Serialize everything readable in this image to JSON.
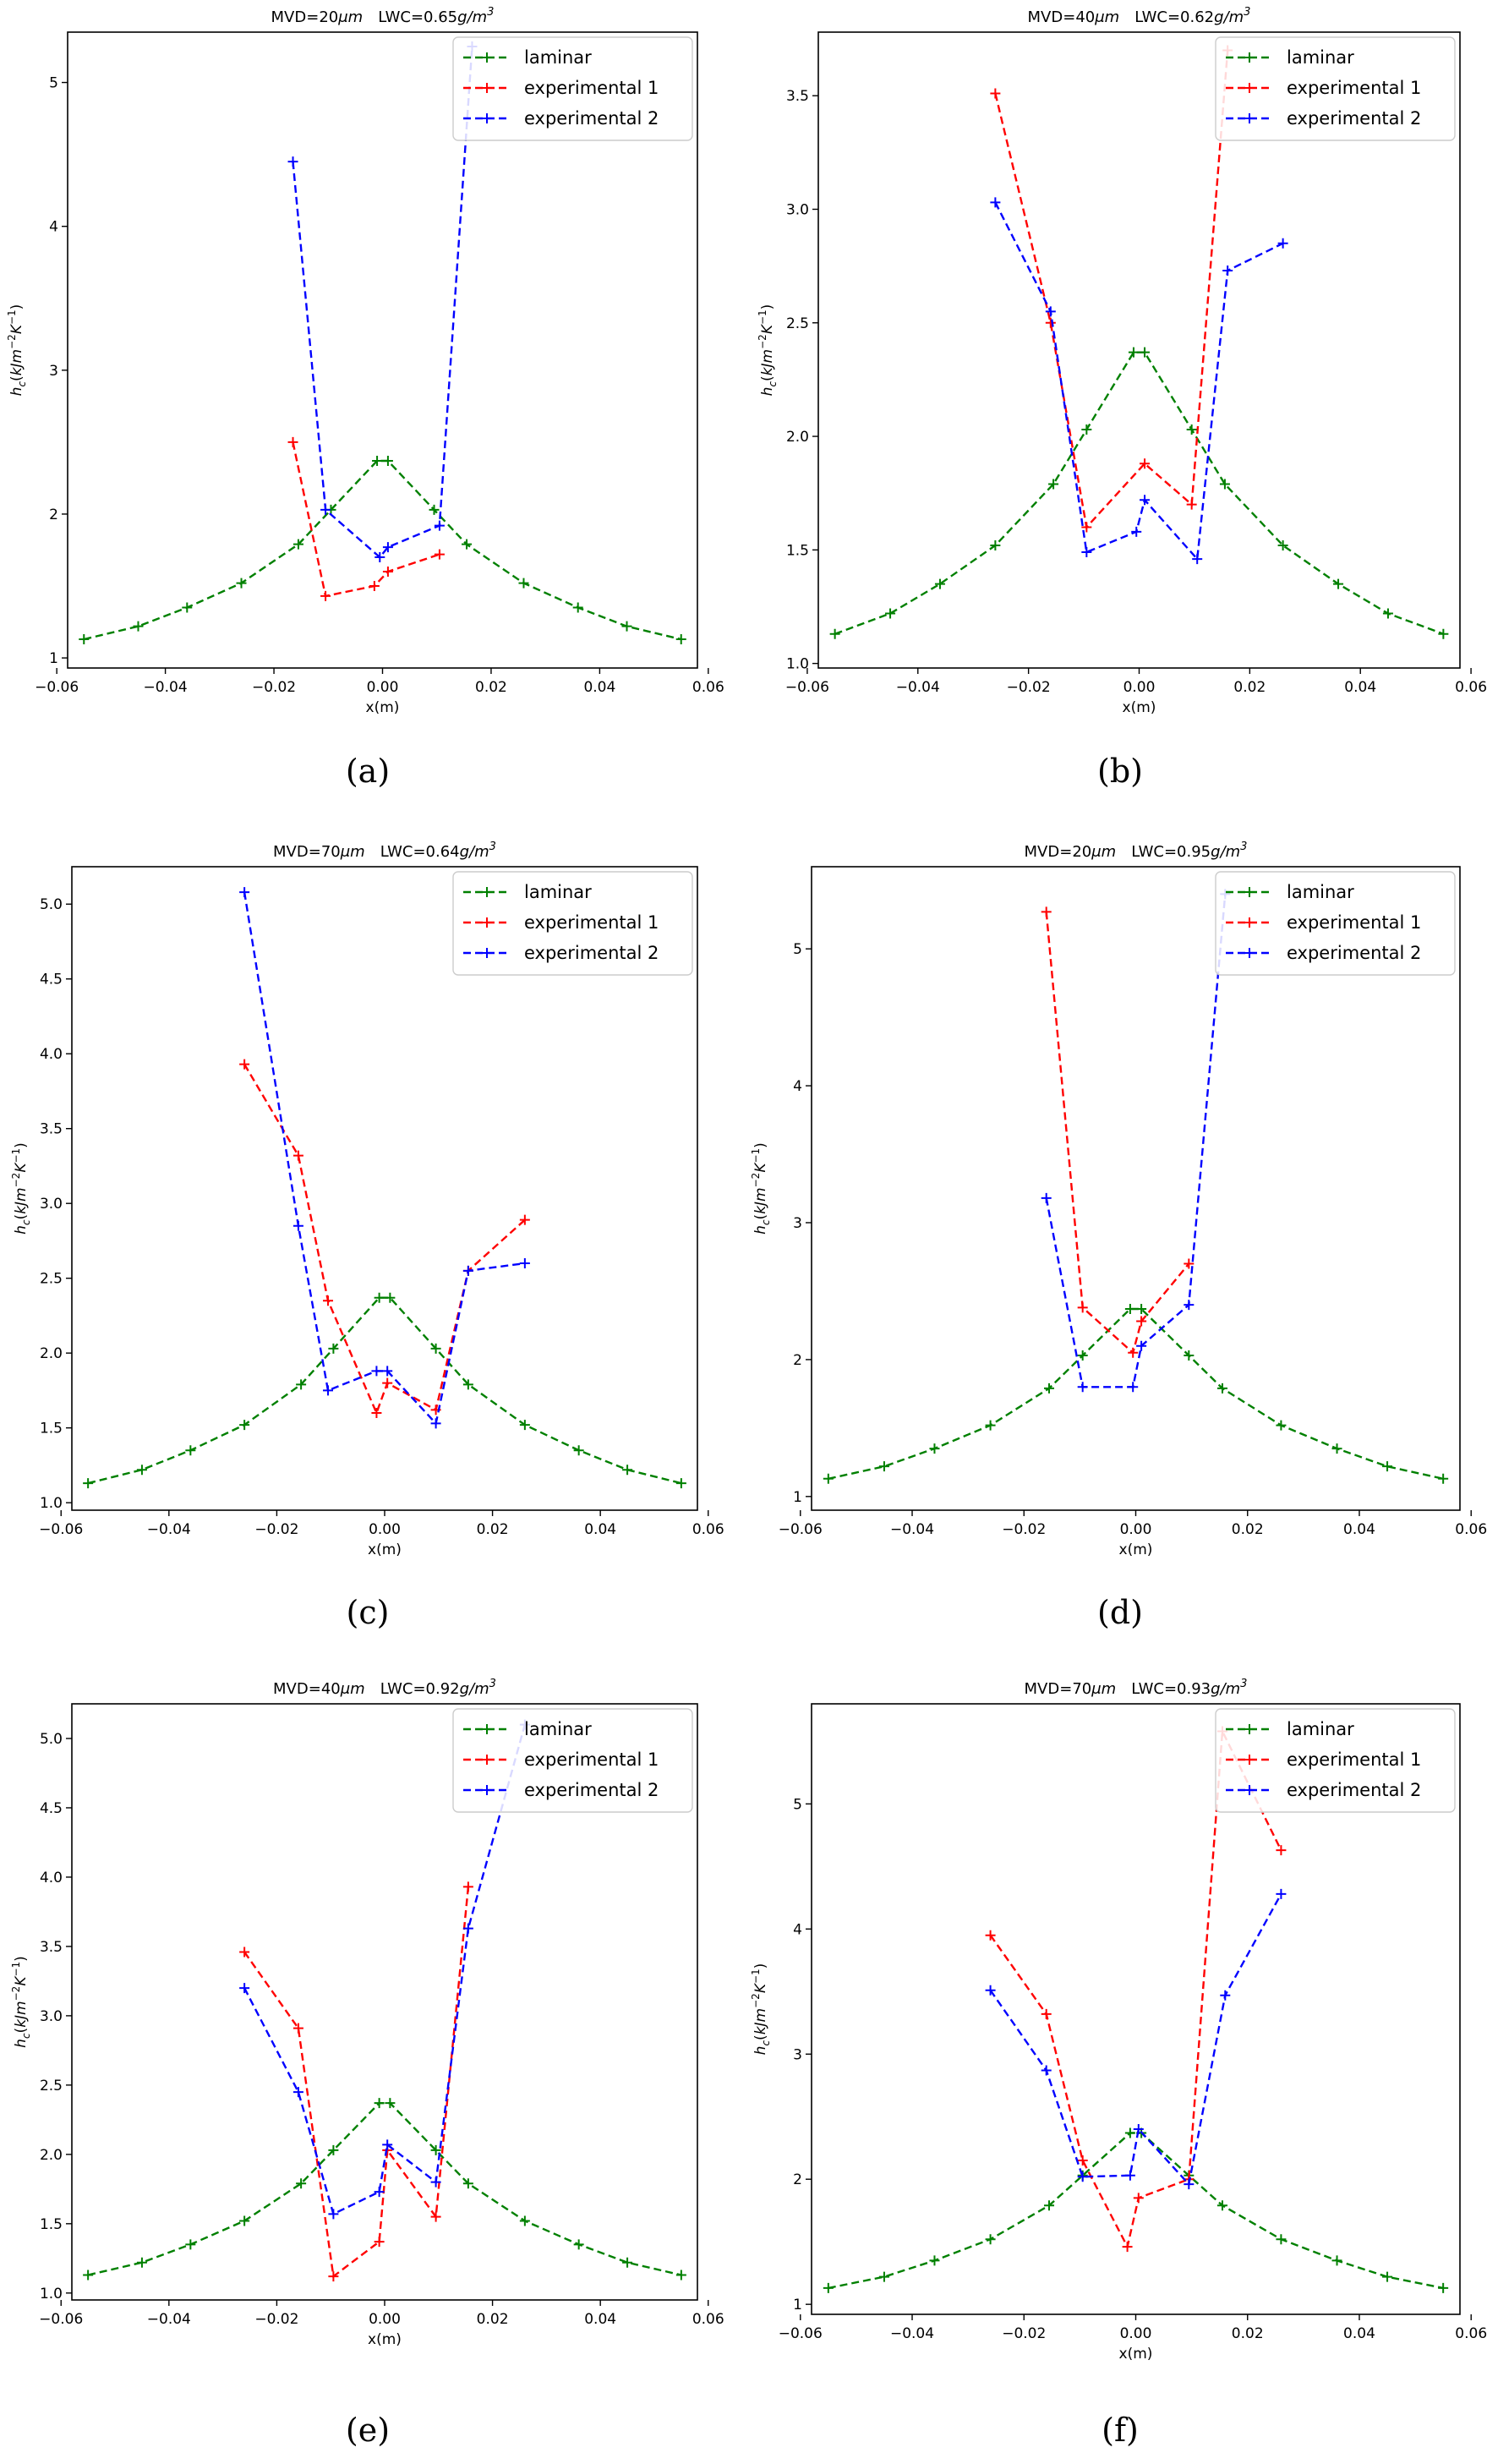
{
  "chart_data": [
    {
      "type": "line",
      "title_main": "MVD=20",
      "title_mvd_unit": "μm",
      "title_lwc": "LWC=0.65",
      "title_lwc_unit": "g/m",
      "title_lwc_exp": "3",
      "caption": "(a)",
      "xlabel": "x(m)",
      "ylabel": "h_c(kJm^-2K^-1)",
      "xlim": [
        -0.058,
        0.058
      ],
      "ylim": [
        0.93,
        5.35
      ],
      "xticks": [
        -0.06,
        -0.04,
        -0.02,
        0.0,
        0.02,
        0.04,
        0.06
      ],
      "xtick_labels": [
        "−0.06",
        "−0.04",
        "−0.02",
        "0.00",
        "0.02",
        "0.04",
        "0.06"
      ],
      "yticks": [
        1,
        2,
        3,
        4,
        5
      ],
      "ytick_labels": [
        "1",
        "2",
        "3",
        "4",
        "5"
      ],
      "legend_position": "top-right",
      "series": [
        {
          "name": "laminar",
          "color": "#008000",
          "x": [
            -0.055,
            -0.045,
            -0.036,
            -0.026,
            -0.0155,
            -0.0095,
            -0.001,
            0.001,
            0.0095,
            0.0155,
            0.026,
            0.036,
            0.045,
            0.055
          ],
          "y": [
            1.13,
            1.22,
            1.35,
            1.52,
            1.79,
            2.03,
            2.37,
            2.37,
            2.03,
            1.79,
            1.52,
            1.35,
            1.22,
            1.13
          ]
        },
        {
          "name": "experimental 1",
          "color": "#ff0000",
          "x": [
            -0.0165,
            -0.0105,
            -0.0015,
            0.001,
            0.0105
          ],
          "y": [
            2.5,
            1.43,
            1.5,
            1.6,
            1.72
          ]
        },
        {
          "name": "experimental 2",
          "color": "#0000ff",
          "x": [
            -0.0165,
            -0.0105,
            -0.0005,
            0.001,
            0.0105,
            0.0165
          ],
          "y": [
            4.45,
            2.03,
            1.7,
            1.77,
            1.92,
            5.25
          ]
        }
      ]
    },
    {
      "type": "line",
      "title_main": "MVD=40",
      "title_mvd_unit": "μm",
      "title_lwc": "LWC=0.62",
      "title_lwc_unit": "g/m",
      "title_lwc_exp": "3",
      "caption": "(b)",
      "xlabel": "x(m)",
      "ylabel": "h_c(kJm^-2K^-1)",
      "xlim": [
        -0.058,
        0.058
      ],
      "ylim": [
        0.98,
        3.78
      ],
      "xticks": [
        -0.06,
        -0.04,
        -0.02,
        0.0,
        0.02,
        0.04,
        0.06
      ],
      "xtick_labels": [
        "−0.06",
        "−0.04",
        "−0.02",
        "0.00",
        "0.02",
        "0.04",
        "0.06"
      ],
      "yticks": [
        1.0,
        1.5,
        2.0,
        2.5,
        3.0,
        3.5
      ],
      "ytick_labels": [
        "1.0",
        "1.5",
        "2.0",
        "2.5",
        "3.0",
        "3.5"
      ],
      "legend_position": "top-right",
      "series": [
        {
          "name": "laminar",
          "color": "#008000",
          "x": [
            -0.055,
            -0.045,
            -0.036,
            -0.026,
            -0.0155,
            -0.0095,
            -0.001,
            0.001,
            0.0095,
            0.0155,
            0.026,
            0.036,
            0.045,
            0.055
          ],
          "y": [
            1.13,
            1.22,
            1.35,
            1.52,
            1.79,
            2.03,
            2.37,
            2.37,
            2.03,
            1.79,
            1.52,
            1.35,
            1.22,
            1.13
          ]
        },
        {
          "name": "experimental 1",
          "color": "#ff0000",
          "x": [
            -0.026,
            -0.016,
            -0.0095,
            0.001,
            0.0095,
            0.016
          ],
          "y": [
            3.51,
            2.5,
            1.6,
            1.88,
            1.7,
            3.7
          ]
        },
        {
          "name": "experimental 2",
          "color": "#0000ff",
          "x": [
            -0.026,
            -0.016,
            -0.0095,
            -0.0005,
            0.001,
            0.0105,
            0.016,
            0.026
          ],
          "y": [
            3.03,
            2.55,
            1.49,
            1.58,
            1.72,
            1.46,
            2.73,
            2.85
          ]
        }
      ]
    },
    {
      "type": "line",
      "title_main": "MVD=70",
      "title_mvd_unit": "μm",
      "title_lwc": "LWC=0.64",
      "title_lwc_unit": "g/m",
      "title_lwc_exp": "3",
      "caption": "(c)",
      "xlabel": "x(m)",
      "ylabel": "h_c(kJm^-2K^-1)",
      "xlim": [
        -0.058,
        0.058
      ],
      "ylim": [
        0.95,
        5.25
      ],
      "xticks": [
        -0.06,
        -0.04,
        -0.02,
        0.0,
        0.02,
        0.04,
        0.06
      ],
      "xtick_labels": [
        "−0.06",
        "−0.04",
        "−0.02",
        "0.00",
        "0.02",
        "0.04",
        "0.06"
      ],
      "yticks": [
        1.0,
        1.5,
        2.0,
        2.5,
        3.0,
        3.5,
        4.0,
        4.5,
        5.0
      ],
      "ytick_labels": [
        "1.0",
        "1.5",
        "2.0",
        "2.5",
        "3.0",
        "3.5",
        "4.0",
        "4.5",
        "5.0"
      ],
      "legend_position": "top-right",
      "series": [
        {
          "name": "laminar",
          "color": "#008000",
          "x": [
            -0.055,
            -0.045,
            -0.036,
            -0.026,
            -0.0155,
            -0.0095,
            -0.001,
            0.001,
            0.0095,
            0.0155,
            0.026,
            0.036,
            0.045,
            0.055
          ],
          "y": [
            1.13,
            1.22,
            1.35,
            1.52,
            1.79,
            2.03,
            2.37,
            2.37,
            2.03,
            1.79,
            1.52,
            1.35,
            1.22,
            1.13
          ]
        },
        {
          "name": "experimental 1",
          "color": "#ff0000",
          "x": [
            -0.026,
            -0.016,
            -0.0105,
            -0.0015,
            0.0005,
            0.0095,
            0.0155,
            0.026
          ],
          "y": [
            3.93,
            3.32,
            2.35,
            1.6,
            1.8,
            1.62,
            2.55,
            2.89
          ]
        },
        {
          "name": "experimental 2",
          "color": "#0000ff",
          "x": [
            -0.026,
            -0.016,
            -0.0105,
            -0.0015,
            0.0005,
            0.0095,
            0.0155,
            0.026
          ],
          "y": [
            5.08,
            2.85,
            1.75,
            1.88,
            1.88,
            1.53,
            2.55,
            2.6
          ]
        }
      ]
    },
    {
      "type": "line",
      "title_main": "MVD=20",
      "title_mvd_unit": "μm",
      "title_lwc": "LWC=0.95",
      "title_lwc_unit": "g/m",
      "title_lwc_exp": "3",
      "caption": "(d)",
      "xlabel": "x(m)",
      "ylabel": "h_c(kJm^-2K^-1)",
      "xlim": [
        -0.058,
        0.058
      ],
      "ylim": [
        0.9,
        5.6
      ],
      "xticks": [
        -0.06,
        -0.04,
        -0.02,
        0.0,
        0.02,
        0.04,
        0.06
      ],
      "xtick_labels": [
        "−0.06",
        "−0.04",
        "−0.02",
        "0.00",
        "0.02",
        "0.04",
        "0.06"
      ],
      "yticks": [
        1,
        2,
        3,
        4,
        5
      ],
      "ytick_labels": [
        "1",
        "2",
        "3",
        "4",
        "5"
      ],
      "legend_position": "top-right",
      "series": [
        {
          "name": "laminar",
          "color": "#008000",
          "x": [
            -0.055,
            -0.045,
            -0.036,
            -0.026,
            -0.0155,
            -0.0095,
            -0.001,
            0.001,
            0.0095,
            0.0155,
            0.026,
            0.036,
            0.045,
            0.055
          ],
          "y": [
            1.13,
            1.22,
            1.35,
            1.52,
            1.79,
            2.03,
            2.37,
            2.37,
            2.03,
            1.79,
            1.52,
            1.35,
            1.22,
            1.13
          ]
        },
        {
          "name": "experimental 1",
          "color": "#ff0000",
          "x": [
            -0.016,
            -0.0095,
            -0.0005,
            0.001,
            0.0095
          ],
          "y": [
            5.27,
            2.38,
            2.05,
            2.28,
            2.7
          ]
        },
        {
          "name": "experimental 2",
          "color": "#0000ff",
          "x": [
            -0.016,
            -0.0095,
            -0.0005,
            0.001,
            0.0095,
            0.016
          ],
          "y": [
            3.18,
            1.8,
            1.8,
            2.1,
            2.4,
            5.4
          ]
        }
      ]
    },
    {
      "type": "line",
      "title_main": "MVD=40",
      "title_mvd_unit": "μm",
      "title_lwc": "LWC=0.92",
      "title_lwc_unit": "g/m",
      "title_lwc_exp": "3",
      "caption": "(e)",
      "xlabel": "x(m)",
      "ylabel": "h_c(kJm^-2K^-1)",
      "xlim": [
        -0.058,
        0.058
      ],
      "ylim": [
        0.95,
        5.25
      ],
      "xticks": [
        -0.06,
        -0.04,
        -0.02,
        0.0,
        0.02,
        0.04,
        0.06
      ],
      "xtick_labels": [
        "−0.06",
        "−0.04",
        "−0.02",
        "0.00",
        "0.02",
        "0.04",
        "0.06"
      ],
      "yticks": [
        1.0,
        1.5,
        2.0,
        2.5,
        3.0,
        3.5,
        4.0,
        4.5,
        5.0
      ],
      "ytick_labels": [
        "1.0",
        "1.5",
        "2.0",
        "2.5",
        "3.0",
        "3.5",
        "4.0",
        "4.5",
        "5.0"
      ],
      "legend_position": "top-right",
      "series": [
        {
          "name": "laminar",
          "color": "#008000",
          "x": [
            -0.055,
            -0.045,
            -0.036,
            -0.026,
            -0.0155,
            -0.0095,
            -0.001,
            0.001,
            0.0095,
            0.0155,
            0.026,
            0.036,
            0.045,
            0.055
          ],
          "y": [
            1.13,
            1.22,
            1.35,
            1.52,
            1.79,
            2.03,
            2.37,
            2.37,
            2.03,
            1.79,
            1.52,
            1.35,
            1.22,
            1.13
          ]
        },
        {
          "name": "experimental 1",
          "color": "#ff0000",
          "x": [
            -0.026,
            -0.016,
            -0.0095,
            -0.001,
            0.0005,
            0.0095,
            0.0155
          ],
          "y": [
            3.46,
            2.91,
            1.12,
            1.37,
            2.03,
            1.55,
            3.93
          ]
        },
        {
          "name": "experimental 2",
          "color": "#0000ff",
          "x": [
            -0.026,
            -0.016,
            -0.0095,
            -0.001,
            0.0005,
            0.0095,
            0.0155,
            0.026
          ],
          "y": [
            3.2,
            2.45,
            1.57,
            1.73,
            2.07,
            1.8,
            3.63,
            5.1
          ]
        }
      ]
    },
    {
      "type": "line",
      "title_main": "MVD=70",
      "title_mvd_unit": "μm",
      "title_lwc": "LWC=0.93",
      "title_lwc_unit": "g/m",
      "title_lwc_exp": "3",
      "caption": "(f)",
      "xlabel": "x(m)",
      "ylabel": "h_c(kJm^-2K^-1)",
      "xlim": [
        -0.058,
        0.058
      ],
      "ylim": [
        0.92,
        5.8
      ],
      "xticks": [
        -0.06,
        -0.04,
        -0.02,
        0.0,
        0.02,
        0.04,
        0.06
      ],
      "xtick_labels": [
        "−0.06",
        "−0.04",
        "−0.02",
        "0.00",
        "0.02",
        "0.04",
        "0.06"
      ],
      "yticks": [
        1,
        2,
        3,
        4,
        5
      ],
      "ytick_labels": [
        "1",
        "2",
        "3",
        "4",
        "5"
      ],
      "legend_position": "top-right",
      "series": [
        {
          "name": "laminar",
          "color": "#008000",
          "x": [
            -0.055,
            -0.045,
            -0.036,
            -0.026,
            -0.0155,
            -0.0095,
            -0.001,
            0.001,
            0.0095,
            0.0155,
            0.026,
            0.036,
            0.045,
            0.055
          ],
          "y": [
            1.13,
            1.22,
            1.35,
            1.52,
            1.79,
            2.03,
            2.37,
            2.37,
            2.03,
            1.79,
            1.52,
            1.35,
            1.22,
            1.13
          ]
        },
        {
          "name": "experimental 1",
          "color": "#ff0000",
          "x": [
            -0.026,
            -0.016,
            -0.0095,
            -0.0015,
            0.0005,
            0.0095,
            0.0155,
            0.026
          ],
          "y": [
            3.95,
            3.32,
            2.15,
            1.46,
            1.85,
            2.0,
            5.58,
            4.63
          ]
        },
        {
          "name": "experimental 2",
          "color": "#0000ff",
          "x": [
            -0.026,
            -0.016,
            -0.0095,
            -0.001,
            0.0005,
            0.0095,
            0.016,
            0.026
          ],
          "y": [
            3.51,
            2.87,
            2.02,
            2.03,
            2.4,
            1.96,
            3.47,
            4.28
          ]
        }
      ]
    }
  ]
}
